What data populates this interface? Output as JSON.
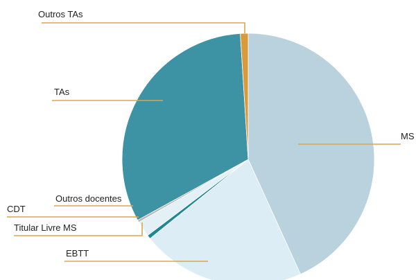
{
  "chart_data": {
    "type": "pie",
    "title": "",
    "slices": [
      {
        "label": "MS",
        "value": 43.2,
        "color": "#b9d2de"
      },
      {
        "label": "EBTT",
        "value": 21.0,
        "color": "#dcedf5"
      },
      {
        "label": "Titular Livre MS",
        "value": 0.5,
        "color": "#1f8796"
      },
      {
        "label": "CDT",
        "value": 2.0,
        "color": "#e3f0f6"
      },
      {
        "label": "Outros docentes",
        "value": 0.3,
        "color": "#b7b7b7"
      },
      {
        "label": "TAs",
        "value": 32.0,
        "color": "#3d93a3"
      },
      {
        "label": "Outros TAs",
        "value": 1.0,
        "color": "#d89a3a"
      }
    ],
    "leader_color": "#dca54a",
    "legend": "none"
  }
}
